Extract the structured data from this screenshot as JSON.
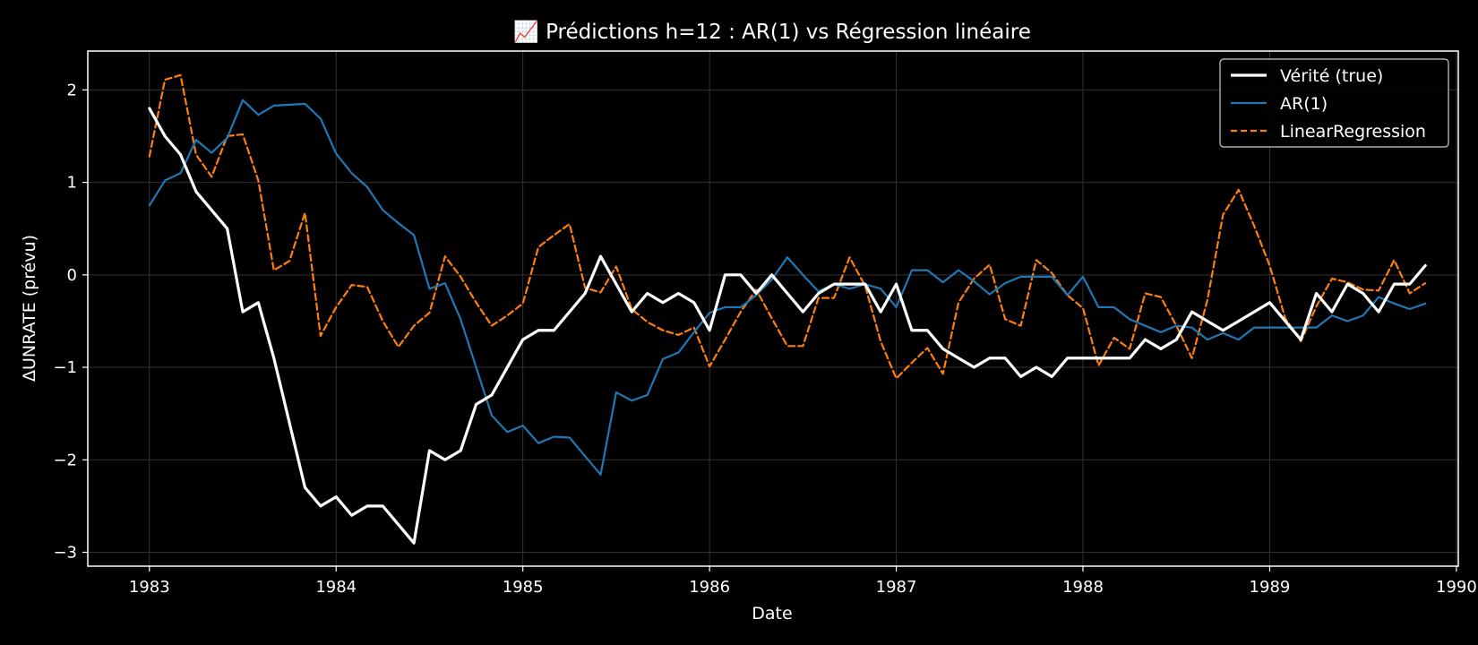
{
  "chart_data": {
    "type": "line",
    "title": "📈 Prédictions h=12 : AR(1) vs Régression linéaire",
    "xlabel": "Date",
    "ylabel": "ΔUNRATE (prévu)",
    "xlim": [
      1982.67,
      1990.01
    ],
    "ylim": [
      -3.15,
      2.42
    ],
    "x_ticks": [
      1983,
      1984,
      1985,
      1986,
      1987,
      1988,
      1989,
      1990
    ],
    "y_ticks": [
      {
        "value": 2,
        "label": "2"
      },
      {
        "value": 1,
        "label": "1"
      },
      {
        "value": 0,
        "label": "0"
      },
      {
        "value": -1,
        "label": "−1"
      },
      {
        "value": -2,
        "label": "−2"
      },
      {
        "value": -3,
        "label": "−3"
      }
    ],
    "grid": true,
    "legend_position": "top-right",
    "start_year": 1983,
    "colors": {
      "background": "#000000",
      "axes": "#ffffff",
      "grid": "#333333"
    },
    "series": [
      {
        "name": "Vérité (true)",
        "color": "#ffffff",
        "style": "solid",
        "values": [
          1.8,
          1.5,
          1.3,
          0.9,
          0.7,
          0.5,
          -0.4,
          -0.3,
          -0.9,
          -1.6,
          -2.3,
          -2.5,
          -2.4,
          -2.6,
          -2.5,
          -2.5,
          -2.7,
          -2.9,
          -1.9,
          -2.0,
          -1.9,
          -1.4,
          -1.3,
          -1.0,
          -0.7,
          -0.6,
          -0.6,
          -0.4,
          -0.2,
          0.2,
          -0.1,
          -0.4,
          -0.2,
          -0.3,
          -0.2,
          -0.3,
          -0.6,
          0.0,
          0.0,
          -0.2,
          0.0,
          -0.2,
          -0.4,
          -0.2,
          -0.1,
          -0.1,
          -0.1,
          -0.4,
          -0.1,
          -0.6,
          -0.6,
          -0.8,
          -0.9,
          -1.0,
          -0.9,
          -0.9,
          -1.1,
          -1.0,
          -1.1,
          -0.9,
          -0.9,
          -0.9,
          -0.9,
          -0.9,
          -0.7,
          -0.8,
          -0.7,
          -0.4,
          -0.5,
          -0.6,
          -0.5,
          -0.4,
          -0.3,
          -0.5,
          -0.7,
          -0.2,
          -0.4,
          -0.1,
          -0.2,
          -0.4,
          -0.1,
          -0.1,
          0.1
        ]
      },
      {
        "name": "AR(1)",
        "color": "#1f77b4",
        "style": "solid",
        "values": [
          0.75,
          1.02,
          1.1,
          1.46,
          1.32,
          1.48,
          1.89,
          1.73,
          1.83,
          1.84,
          1.85,
          1.69,
          1.31,
          1.1,
          0.95,
          0.7,
          0.56,
          0.43,
          -0.15,
          -0.09,
          -0.48,
          -1.0,
          -1.52,
          -1.7,
          -1.63,
          -1.82,
          -1.75,
          -1.76,
          -1.96,
          -2.16,
          -1.27,
          -1.36,
          -1.3,
          -0.91,
          -0.84,
          -0.62,
          -0.41,
          -0.35,
          -0.35,
          -0.22,
          -0.05,
          0.19,
          0.0,
          -0.18,
          -0.1,
          -0.15,
          -0.1,
          -0.15,
          -0.35,
          0.05,
          0.05,
          -0.08,
          0.05,
          -0.07,
          -0.21,
          -0.09,
          -0.02,
          -0.02,
          -0.02,
          -0.22,
          -0.02,
          -0.35,
          -0.35,
          -0.48,
          -0.55,
          -0.62,
          -0.55,
          -0.57,
          -0.7,
          -0.63,
          -0.7,
          -0.57,
          -0.57,
          -0.57,
          -0.57,
          -0.57,
          -0.44,
          -0.5,
          -0.44,
          -0.24,
          -0.31,
          -0.37,
          -0.31
        ]
      },
      {
        "name": "LinearRegression",
        "color": "#ff7f0e",
        "style": "dashed",
        "values": [
          1.28,
          2.11,
          2.16,
          1.3,
          1.06,
          1.5,
          1.52,
          1.02,
          0.05,
          0.15,
          0.67,
          -0.66,
          -0.35,
          -0.11,
          -0.13,
          -0.5,
          -0.78,
          -0.55,
          -0.41,
          0.2,
          -0.02,
          -0.3,
          -0.55,
          -0.44,
          -0.31,
          0.3,
          0.43,
          0.55,
          -0.14,
          -0.19,
          0.09,
          -0.37,
          -0.51,
          -0.6,
          -0.65,
          -0.57,
          -0.99,
          -0.7,
          -0.4,
          -0.16,
          -0.47,
          -0.77,
          -0.77,
          -0.25,
          -0.25,
          0.19,
          -0.12,
          -0.72,
          -1.12,
          -0.95,
          -0.79,
          -1.07,
          -0.3,
          -0.04,
          0.11,
          -0.48,
          -0.55,
          0.16,
          0.02,
          -0.22,
          -0.36,
          -0.98,
          -0.68,
          -0.8,
          -0.2,
          -0.24,
          -0.55,
          -0.9,
          -0.27,
          0.65,
          0.92,
          0.53,
          0.1,
          -0.47,
          -0.72,
          -0.34,
          -0.04,
          -0.08,
          -0.16,
          -0.17,
          0.16,
          -0.2,
          -0.09
        ]
      }
    ]
  }
}
